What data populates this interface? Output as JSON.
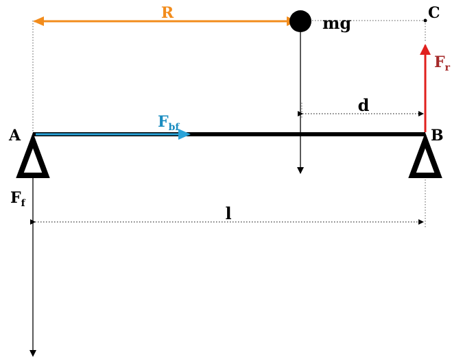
{
  "points": {
    "a": "A",
    "b": "B",
    "c": "C"
  },
  "forces": {
    "weight": "mg",
    "f_f_main": "F",
    "f_f_sub": "f",
    "f_r_main": "F",
    "f_r_sub": "r",
    "f_bf_main": "F",
    "f_bf_sub": "bf"
  },
  "dimensions": {
    "r": "R",
    "d": "d",
    "l": "l"
  },
  "colors": {
    "beam": "#000000",
    "r_arrow": "#f28c1c",
    "f_r_arrow": "#e0201e",
    "f_r_label": "#a52a2a",
    "f_bf_arrow": "#2aa3d8",
    "f_bf_label": "#1a8cc0"
  }
}
